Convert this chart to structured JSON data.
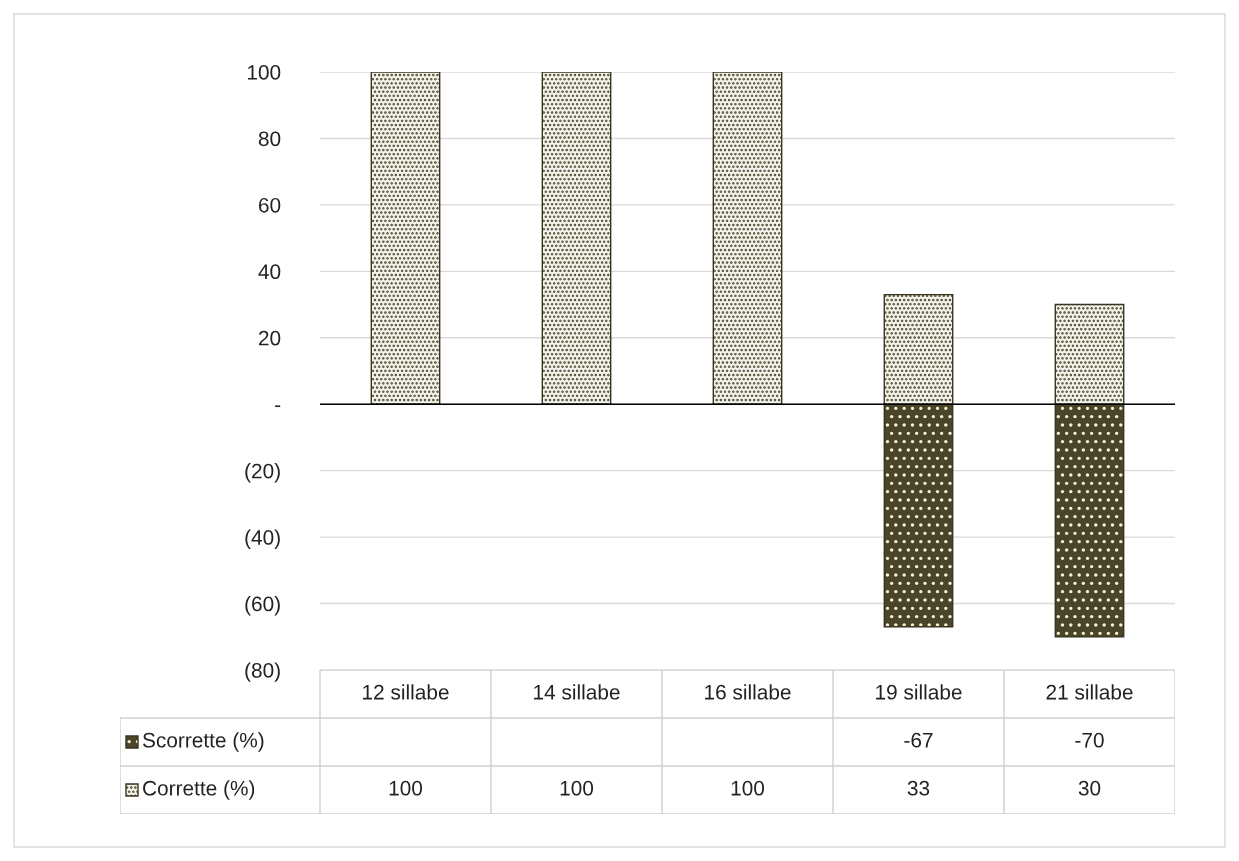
{
  "chart_data": {
    "type": "bar",
    "stacked": true,
    "categories": [
      "12 sillabe",
      "14 sillabe",
      "16 sillabe",
      "19 sillabe",
      "21 sillabe"
    ],
    "series": [
      {
        "name": "Scorrette (%)",
        "color": "#4a4528",
        "values": [
          null,
          null,
          null,
          -67,
          -70
        ]
      },
      {
        "name": "Corrette (%)",
        "color": "#f2f1ea",
        "values": [
          100,
          100,
          100,
          33,
          30
        ]
      }
    ],
    "ylim": [
      -80,
      100
    ],
    "yticks": [
      {
        "value": -80,
        "label": "(80)"
      },
      {
        "value": -60,
        "label": "(60)"
      },
      {
        "value": -40,
        "label": "(40)"
      },
      {
        "value": -20,
        "label": "(20)"
      },
      {
        "value": 0,
        "label": "-"
      },
      20,
      40,
      60,
      80,
      100
    ],
    "grid": "y",
    "data_labels": true,
    "legend": "bottom"
  }
}
